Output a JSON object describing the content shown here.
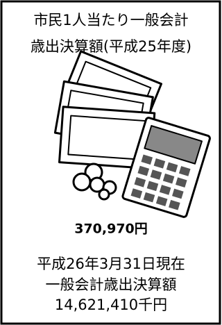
{
  "title": {
    "lines": [
      "市民1人当たり一般会計",
      "歳出決算額(平成25年度)"
    ]
  },
  "per_capita": "370,970円",
  "footer": {
    "lines": [
      "平成26年3月31日現在",
      "一般会計歳出決算額",
      "14,621,410千円"
    ]
  }
}
